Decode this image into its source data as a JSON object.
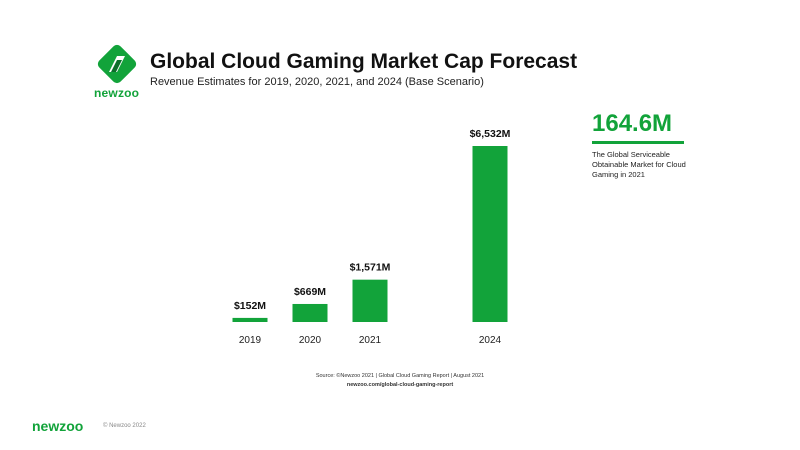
{
  "brand": {
    "logo_text": "newzoo",
    "green": "#12a33a",
    "dark_green": "#0b6e2a"
  },
  "title": "Global Cloud Gaming Market Cap Forecast",
  "subtitle": "Revenue Estimates for 2019, 2020, 2021, and 2024 (Base Scenario)",
  "chart_data": {
    "type": "bar",
    "categories": [
      "2019",
      "2020",
      "2021",
      "2024"
    ],
    "values": [
      152,
      669,
      1571,
      6532
    ],
    "value_labels": [
      "$152M",
      "$669M",
      "$1,571M",
      "$6,532M"
    ],
    "unit": "USD millions",
    "ylim": [
      0,
      6532
    ],
    "grid": false,
    "legend": "none",
    "bar_color": "#12a33a"
  },
  "stat": {
    "value": "164.6M",
    "description": "The Global Serviceable Obtainable Market for Cloud Gaming in 2021"
  },
  "source": {
    "text": "Source: ©Newzoo 2021 | Global Cloud Gaming Report | August 2021",
    "url": "newzoo.com/global-cloud-gaming-report"
  },
  "footer": {
    "logo_text": "newzoo",
    "copyright": "© Newzoo 2022"
  }
}
